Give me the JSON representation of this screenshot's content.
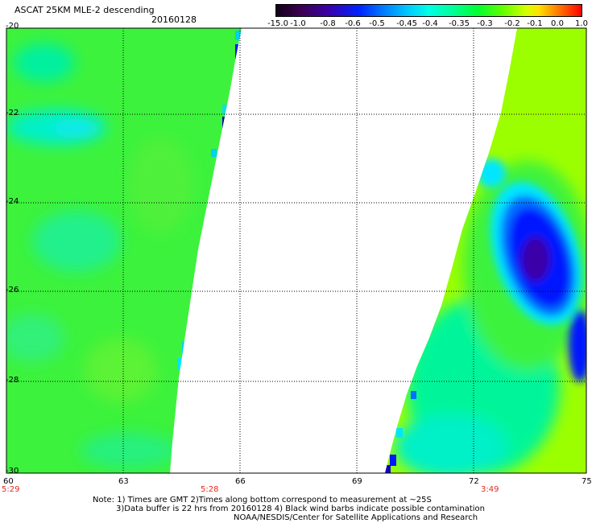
{
  "title": "ASCAT 25KM MLE-2 descending",
  "date": "20160128",
  "colorbar": {
    "labels": [
      "-15.0",
      "-1.0",
      "-0.8",
      "-0.6",
      "-0.5",
      "-0.45",
      "-0.4",
      "-0.35",
      "-0.3",
      "-0.2",
      "-0.1",
      "0.0",
      "1.0"
    ]
  },
  "axes": {
    "x_ticks": [
      "60",
      "63",
      "66",
      "69",
      "72",
      "75"
    ],
    "y_ticks": [
      "-20",
      "-22",
      "-24",
      "-26",
      "-28",
      "-30"
    ],
    "lon_range": [
      60,
      75
    ],
    "lat_range": [
      -20,
      -30
    ],
    "grid": true
  },
  "pass_times": [
    "5:29",
    "5:28",
    "3:49"
  ],
  "notes": {
    "line1": "Note: 1) Times are GMT 2)Times along bottom correspond to measurement at ~25S",
    "line2": "3)Data buffer is 22 hrs from 20160128 4) Black wind barbs indicate possible contamination",
    "line3": "NOAA/NESDIS/Center for Satellite Applications and Research"
  },
  "colors": {
    "field": "#3cf23c",
    "low": "#0018ff",
    "high": "#9cff00",
    "text_time": "#e8281c"
  }
}
